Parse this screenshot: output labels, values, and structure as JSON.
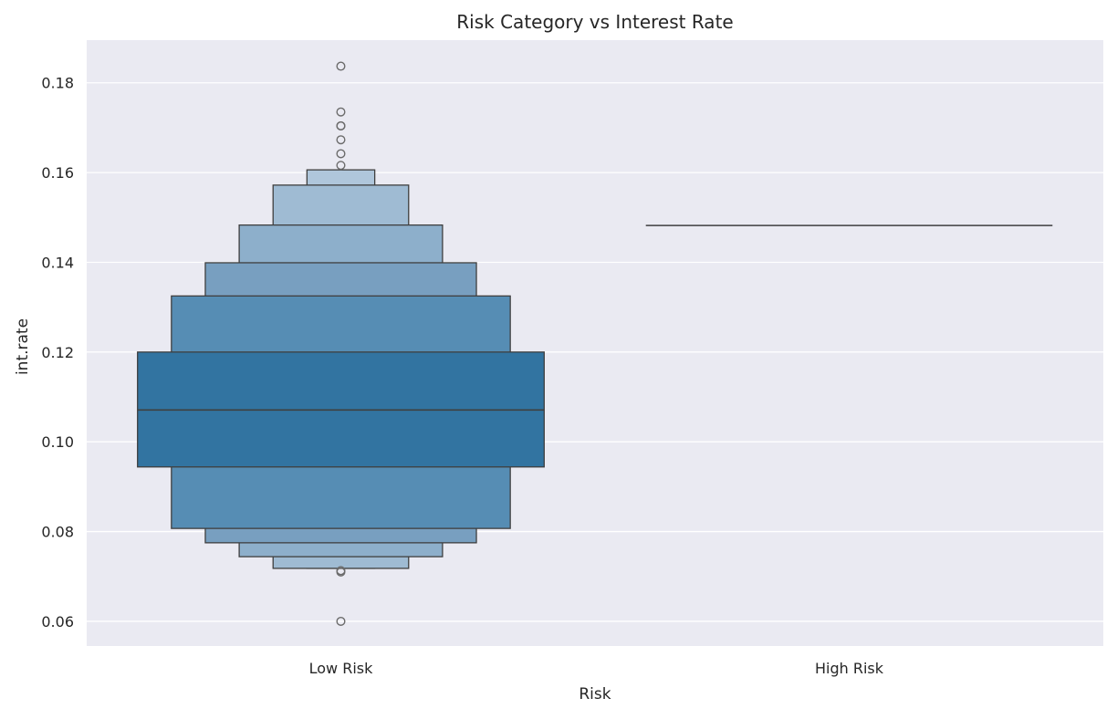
{
  "chart_data": {
    "type": "boxen",
    "title": "Risk Category vs Interest Rate",
    "xlabel": "Risk",
    "ylabel": "int.rate",
    "ylim": [
      0.0545,
      0.1895
    ],
    "yticks": [
      "0.06",
      "0.08",
      "0.10",
      "0.12",
      "0.14",
      "0.16",
      "0.18"
    ],
    "categories": [
      "Low Risk",
      "High Risk"
    ],
    "grid": true,
    "colors": {
      "background": "#EAEAF2",
      "grid": "#FFFFFF",
      "edge": "#3F3F3F",
      "outlier": "#6B6B6B",
      "box_levels": [
        "#3274A1",
        "#568DB4",
        "#789FC0",
        "#8DAFCB",
        "#9FBBD3",
        "#AFC6DB"
      ]
    },
    "boxes": [
      {
        "category": "Low Risk",
        "median": 0.1071,
        "levels": [
          [
            0.0944,
            0.12
          ],
          [
            0.0807,
            0.1325
          ],
          [
            0.0775,
            0.1399
          ],
          [
            0.0744,
            0.1483
          ],
          [
            0.0718,
            0.1572
          ],
          [
            0.0718,
            0.1606
          ]
        ],
        "outliers": [
          0.1837,
          0.1735,
          0.1704,
          0.1704,
          0.1673,
          0.1642,
          0.1616,
          0.0713,
          0.071,
          0.06
        ]
      },
      {
        "category": "High Risk",
        "median": 0.1482,
        "levels": [],
        "outliers": []
      }
    ]
  }
}
